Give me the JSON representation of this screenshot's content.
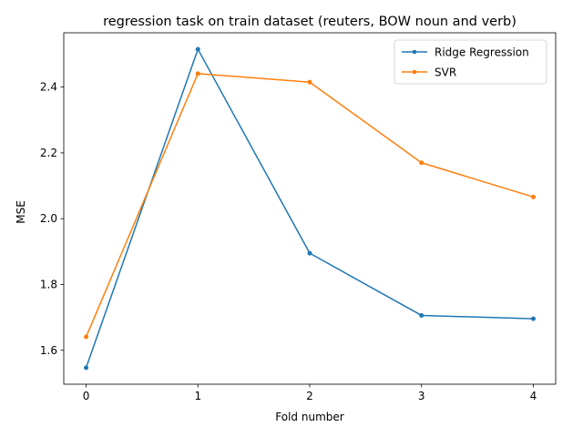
{
  "chart_data": {
    "type": "line",
    "title": "regression task on train dataset (reuters, BOW noun and verb)",
    "xlabel": "Fold number",
    "ylabel": "MSE",
    "x": [
      0,
      1,
      2,
      3,
      4
    ],
    "xticks": [
      "0",
      "1",
      "2",
      "3",
      "4"
    ],
    "yticks": [
      "1.6",
      "1.8",
      "2.0",
      "2.2",
      "2.4"
    ],
    "xlim": [
      -0.2,
      4.2
    ],
    "ylim": [
      1.497,
      2.565
    ],
    "grid": false,
    "legend_position": "top-right",
    "marker": "dot",
    "series": [
      {
        "name": "Ridge Regression",
        "color": "#1f77b4",
        "values": [
          1.547,
          2.515,
          1.895,
          1.706,
          1.696
        ]
      },
      {
        "name": "SVR",
        "color": "#ff7f0e",
        "values": [
          1.641,
          2.441,
          2.415,
          2.17,
          2.066
        ]
      }
    ]
  }
}
